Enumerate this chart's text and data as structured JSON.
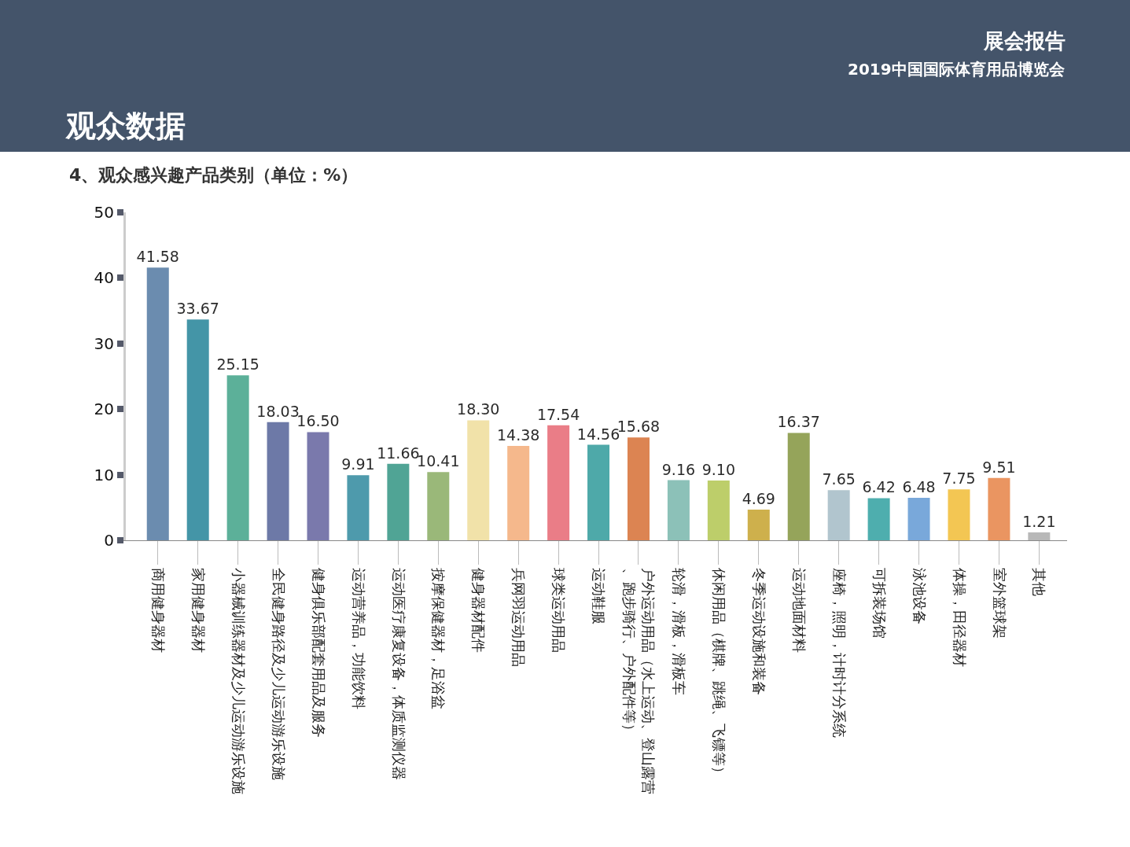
{
  "chart_data": {
    "type": "bar",
    "title": "观众数据",
    "subtitle": "4、观众感兴趣产品类别（单位：%）",
    "annotations": [
      "展会报告",
      "2019中国国际体育用品博览会"
    ],
    "categories": [
      "商用健身器材",
      "家用健身器材",
      "小器械训练器材及少儿运动游乐设施",
      "全民健身路径及少儿运动游乐设施",
      "健身俱乐部配套用品及服务",
      "运动营养品，功能饮料",
      "运动医疗康复设备，体质监测仪器",
      "按摩保健器材，足浴盆",
      "健身器材配件",
      "兵网羽运动用品",
      "球类运动用品",
      "运动鞋服",
      "户外运动用品（水上运动、登山露营、跑步骑行、户外配件等）",
      "轮滑，滑板，滑板车",
      "休闲用品（棋牌、跳绳、飞镖等）",
      "冬季运动设施和装备",
      "运动地面材料",
      "座椅，照明，计时计分系统",
      "可拆装场馆",
      "泳池设备",
      "体操，田径器材",
      "室外篮球架",
      "其他"
    ],
    "values": [
      41.58,
      33.67,
      25.15,
      18.03,
      16.5,
      9.91,
      11.66,
      10.41,
      18.3,
      14.38,
      17.54,
      14.56,
      15.68,
      9.16,
      9.1,
      4.69,
      16.37,
      7.65,
      6.42,
      6.48,
      7.75,
      9.51,
      1.21
    ],
    "value_labels": [
      "41.58",
      "33.67",
      "25.15",
      "18.03",
      "16.50",
      "9.91",
      "11.66",
      "10.41",
      "18.30",
      "14.38",
      "17.54",
      "14.56",
      "15.68",
      "9.16",
      "9.10",
      "4.69",
      "16.37",
      "7.65",
      "6.42",
      "6.48",
      "7.75",
      "9.51",
      "1.21"
    ],
    "colors": [
      "#5b7fa6",
      "#2f8a9e",
      "#4aa88e",
      "#5d6a9e",
      "#6b6aa3",
      "#3a8fa3",
      "#3d9a8a",
      "#8fb06a",
      "#f0dfa0",
      "#f4b07f",
      "#e86f7a",
      "#3aa0a0",
      "#d9773f",
      "#7fbab0",
      "#b6c95a",
      "#c9a838",
      "#8a9a48",
      "#a9bfc9",
      "#3aa5a5",
      "#6a9fd6",
      "#f2c040",
      "#e88a50",
      "#b0b0b0"
    ],
    "ylim": [
      0,
      50
    ],
    "yticks": [
      0,
      10,
      20,
      30,
      40,
      50
    ]
  }
}
